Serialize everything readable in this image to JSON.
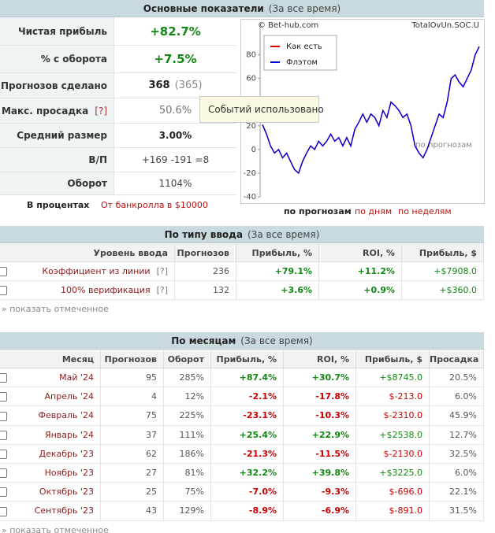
{
  "main": {
    "title": "Основные показатели",
    "period": "(За все время)",
    "rows": [
      {
        "label": "Чистая прибыль",
        "value": "+82.7%"
      },
      {
        "label": "% с оборота",
        "value": "+7.5%"
      },
      {
        "label": "Прогнозов сделано",
        "value": "368",
        "extra": "(365)"
      },
      {
        "label": "Макс. просадка",
        "help": "[?]",
        "value": "50.6%"
      },
      {
        "label": "Средний размер",
        "value": "3.00%"
      },
      {
        "label": "В/П",
        "value": "+169 -191 =8"
      },
      {
        "label": "Оборот",
        "value": "1104%"
      }
    ],
    "mode_label": "В процентах",
    "bankroll": "От банкролла в $10000"
  },
  "chart_data": {
    "type": "line",
    "watermark_left": "© Bet-hub.com",
    "watermark_right": "TotalOvUn.SOC.U",
    "watermark": "по прогнозам",
    "ylim": [
      -40,
      107
    ],
    "yticks": [
      -40,
      -20,
      0,
      20,
      40,
      60,
      80
    ],
    "series": [
      {
        "name": "Как есть",
        "color": "#e00000",
        "values": [
          21,
          13,
          3,
          -3,
          0,
          -7,
          -3,
          -10,
          -17,
          -20,
          -10,
          -3,
          3,
          0,
          7,
          3,
          7,
          13,
          7,
          10,
          3,
          10,
          3,
          17,
          23,
          30,
          23,
          30,
          27,
          20,
          33,
          27,
          40,
          37,
          33,
          27,
          30,
          20,
          3,
          -3,
          -7,
          0,
          10,
          20,
          30,
          27,
          40,
          60,
          63,
          57,
          53,
          60,
          67,
          80,
          87
        ]
      },
      {
        "name": "Флэтом",
        "color": "#0000e0",
        "values": [
          21,
          13,
          3,
          -3,
          0,
          -7,
          -3,
          -10,
          -17,
          -20,
          -10,
          -3,
          3,
          0,
          7,
          3,
          7,
          13,
          7,
          10,
          3,
          10,
          3,
          17,
          23,
          30,
          23,
          30,
          27,
          20,
          33,
          27,
          40,
          37,
          33,
          27,
          30,
          20,
          3,
          -3,
          -7,
          0,
          10,
          20,
          30,
          27,
          40,
          60,
          63,
          57,
          53,
          60,
          67,
          80,
          87
        ]
      }
    ],
    "views": [
      "по прогнозам",
      "по дням",
      "по неделям"
    ]
  },
  "tooltip": "Событий использовано",
  "by_type": {
    "title": "По типу ввода",
    "period": "(За все время)",
    "help": "[?]",
    "show_marked": "» показать отмеченное",
    "columns": [
      "Уровень ввода",
      "Прогнозов",
      "Прибыль, %",
      "ROI, %",
      "Прибыль, $"
    ],
    "rows": [
      [
        "Коэффициент из линии",
        "236",
        "+79.1%",
        "+11.2%",
        "+$7908.0"
      ],
      [
        "100% верификация",
        "132",
        "+3.6%",
        "+0.9%",
        "+$360.0"
      ]
    ]
  },
  "by_month": {
    "title": "По месяцам",
    "period": "(За все время)",
    "show_marked": "» показать отмеченное",
    "columns": [
      "Месяц",
      "Прогнозов",
      "Оборот",
      "Прибыль, %",
      "ROI, %",
      "Прибыль, $",
      "Просадка"
    ],
    "rows": [
      [
        "Май '24",
        "95",
        "285%",
        "+87.4%",
        "+30.7%",
        "+$8745.0",
        "20.5%"
      ],
      [
        "Апрель '24",
        "4",
        "12%",
        "-2.1%",
        "-17.8%",
        "$-213.0",
        "6.0%"
      ],
      [
        "Февраль '24",
        "75",
        "225%",
        "-23.1%",
        "-10.3%",
        "$-2310.0",
        "45.9%"
      ],
      [
        "Январь '24",
        "37",
        "111%",
        "+25.4%",
        "+22.9%",
        "+$2538.0",
        "12.7%"
      ],
      [
        "Декабрь '23",
        "62",
        "186%",
        "-21.3%",
        "-11.5%",
        "$-2130.0",
        "32.5%"
      ],
      [
        "Ноябрь '23",
        "27",
        "81%",
        "+32.2%",
        "+39.8%",
        "+$3225.0",
        "6.0%"
      ],
      [
        "Октябрь '23",
        "25",
        "75%",
        "-7.0%",
        "-9.3%",
        "$-696.0",
        "22.1%"
      ],
      [
        "Сентябрь '23",
        "43",
        "129%",
        "-8.9%",
        "-6.9%",
        "$-891.0",
        "31.5%"
      ]
    ]
  }
}
